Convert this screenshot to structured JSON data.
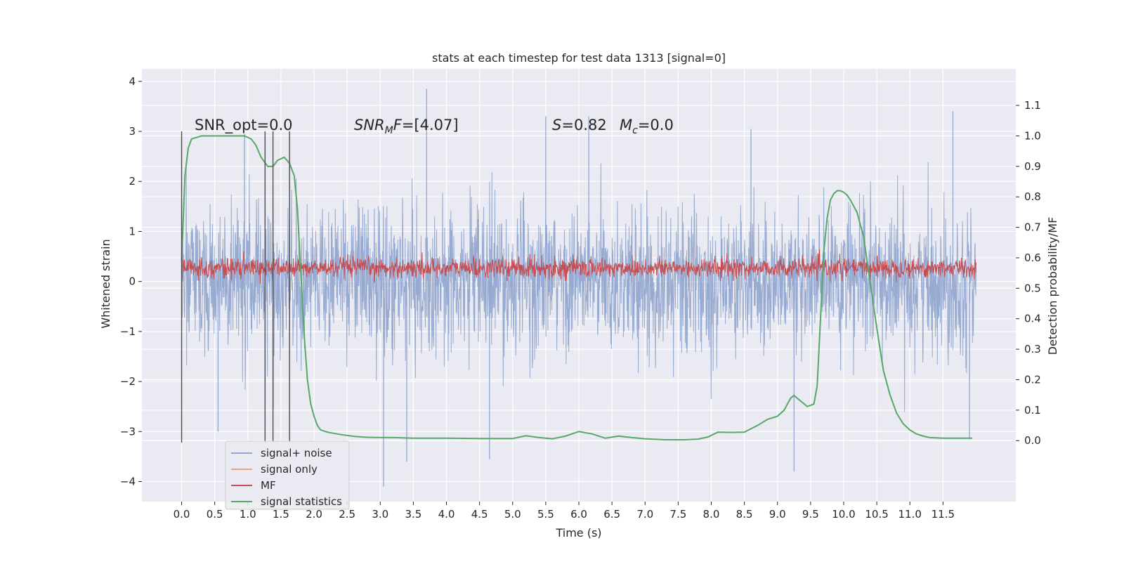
{
  "chart_data": {
    "type": "line",
    "title": "stats at each timestep for test data 1313 [signal=0]",
    "xlabel": "Time (s)",
    "ylabel": "Whitened strain",
    "y2label": "Detection probability/MF",
    "xlim": [
      -0.6,
      12.6
    ],
    "ylim": [
      -4.4,
      4.25
    ],
    "y2lim": [
      -0.2,
      1.22
    ],
    "x_ticks": [
      0.0,
      0.5,
      1.0,
      1.5,
      2.0,
      2.5,
      3.0,
      3.5,
      4.0,
      4.5,
      5.0,
      5.5,
      6.0,
      6.5,
      7.0,
      7.5,
      8.0,
      8.5,
      9.0,
      9.5,
      10.0,
      10.5,
      11.0,
      11.5
    ],
    "y_ticks": [
      -4,
      -3,
      -2,
      -1,
      0,
      1,
      2,
      3,
      4
    ],
    "y2_ticks": [
      0.0,
      0.1,
      0.2,
      0.3,
      0.4,
      0.5,
      0.6,
      0.7,
      0.8,
      0.9,
      1.0,
      1.1
    ],
    "x_tick_labels": [
      "0.0",
      "0.5",
      "1.0",
      "1.5",
      "2.0",
      "2.5",
      "3.0",
      "3.5",
      "4.0",
      "4.5",
      "5.0",
      "5.5",
      "6.0",
      "6.5",
      "7.0",
      "7.5",
      "8.0",
      "8.5",
      "9.0",
      "9.5",
      "10.0",
      "10.5",
      "11.0",
      "11.5"
    ],
    "y_tick_labels": [
      "−4",
      "−3",
      "−2",
      "−1",
      "0",
      "1",
      "2",
      "3",
      "4"
    ],
    "y2_tick_labels": [
      "0.0",
      "0.1",
      "0.2",
      "0.3",
      "0.4",
      "0.5",
      "0.6",
      "0.7",
      "0.8",
      "0.9",
      "1.0",
      "1.1"
    ],
    "grid": true,
    "legend_position": "lower-left",
    "annotations": {
      "snr_opt": "SNR_opt=0.0",
      "snr_mf_prefix": "SNR",
      "snr_mf_sub": "M",
      "snr_mf_suffix": "F=[4.07]",
      "s_label": "S",
      "s_value": "=0.82",
      "mc_label": "M",
      "mc_sub": "c",
      "mc_value": "=0.0"
    },
    "vertical_lines": [
      {
        "x": 0.0,
        "ymin": -3.22,
        "ymax": 3.0
      },
      {
        "x": 1.26,
        "ymin": -3.22,
        "ymax": 3.0
      },
      {
        "x": 1.38,
        "ymin": -3.22,
        "ymax": 3.0
      },
      {
        "x": 1.63,
        "ymin": -3.22,
        "ymax": 3.0
      }
    ],
    "series": [
      {
        "name": "signal+ noise",
        "color": "#92a6cf",
        "axis": "left",
        "kind": "noise",
        "x_range": [
          0.0,
          12.0
        ],
        "amplitude": 1.15,
        "spikes": [
          {
            "x": 3.7,
            "y": 3.85
          },
          {
            "x": 11.65,
            "y": 3.4
          },
          {
            "x": 6.15,
            "y": 3.3
          },
          {
            "x": 3.05,
            "y": -4.1
          },
          {
            "x": 9.25,
            "y": -3.8
          },
          {
            "x": 3.4,
            "y": -3.6
          },
          {
            "x": 4.65,
            "y": -3.55
          },
          {
            "x": 0.55,
            "y": -3.0
          },
          {
            "x": 11.9,
            "y": -3.15
          },
          {
            "x": 5.5,
            "y": 3.3
          },
          {
            "x": 8.6,
            "y": 3.05
          },
          {
            "x": 0.95,
            "y": 2.95
          }
        ]
      },
      {
        "name": "signal only",
        "color": "#e8a58a",
        "axis": "left",
        "kind": "flat",
        "value": 0.0
      },
      {
        "name": "MF",
        "color": "#c44e52",
        "axis": "left",
        "kind": "mf",
        "x_range": [
          0.0,
          12.0
        ],
        "center": 0.27,
        "amplitude": 0.22
      },
      {
        "name": "signal statistics",
        "color": "#55a868",
        "axis": "right",
        "kind": "line",
        "x": [
          0.0,
          0.02,
          0.05,
          0.1,
          0.15,
          0.3,
          0.5,
          0.8,
          0.95,
          1.05,
          1.12,
          1.2,
          1.3,
          1.38,
          1.45,
          1.55,
          1.63,
          1.7,
          1.75,
          1.8,
          1.85,
          1.9,
          1.95,
          2.0,
          2.05,
          2.1,
          2.2,
          2.4,
          2.6,
          2.8,
          3.0,
          3.2,
          3.5,
          4.0,
          4.5,
          5.0,
          5.2,
          5.4,
          5.6,
          5.8,
          6.0,
          6.2,
          6.4,
          6.6,
          6.8,
          7.0,
          7.3,
          7.6,
          7.8,
          7.95,
          8.1,
          8.3,
          8.5,
          8.7,
          8.85,
          9.0,
          9.1,
          9.2,
          9.25,
          9.35,
          9.45,
          9.55,
          9.6,
          9.65,
          9.7,
          9.75,
          9.8,
          9.85,
          9.9,
          9.95,
          10.0,
          10.05,
          10.1,
          10.2,
          10.3,
          10.4,
          10.5,
          10.6,
          10.7,
          10.8,
          10.9,
          11.0,
          11.1,
          11.2,
          11.3,
          11.5,
          11.94
        ],
        "y": [
          0.59,
          0.7,
          0.87,
          0.96,
          0.99,
          1.0,
          1.0,
          1.0,
          1.0,
          0.99,
          0.97,
          0.93,
          0.9,
          0.9,
          0.92,
          0.93,
          0.91,
          0.87,
          0.76,
          0.55,
          0.35,
          0.2,
          0.12,
          0.08,
          0.05,
          0.035,
          0.028,
          0.02,
          0.014,
          0.011,
          0.01,
          0.01,
          0.008,
          0.008,
          0.007,
          0.007,
          0.016,
          0.01,
          0.006,
          0.015,
          0.03,
          0.022,
          0.008,
          0.015,
          0.01,
          0.006,
          0.003,
          0.003,
          0.005,
          0.012,
          0.028,
          0.027,
          0.028,
          0.05,
          0.07,
          0.08,
          0.1,
          0.14,
          0.148,
          0.13,
          0.112,
          0.12,
          0.18,
          0.4,
          0.62,
          0.73,
          0.79,
          0.81,
          0.82,
          0.82,
          0.815,
          0.806,
          0.79,
          0.75,
          0.67,
          0.52,
          0.37,
          0.23,
          0.15,
          0.09,
          0.055,
          0.035,
          0.022,
          0.015,
          0.01,
          0.008,
          0.008
        ]
      }
    ]
  }
}
